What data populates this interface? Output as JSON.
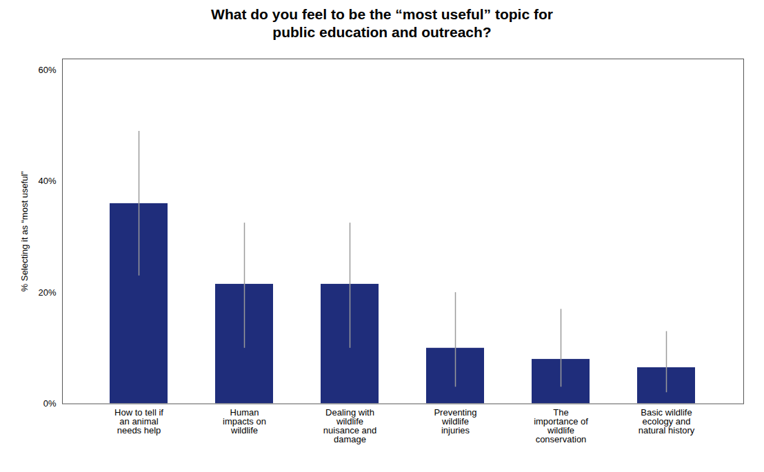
{
  "chart_data": {
    "type": "bar",
    "title": "What do you feel to be the “most useful” topic for\npublic education and outreach?",
    "ylabel": "% Selecting it as “most useful”",
    "categories": [
      "How to tell if\nan animal\nneeds help",
      "Human\nimpacts on\nwildlife",
      "Dealing with\nwildlife\nnuisance and\ndamage",
      "Preventing\nwildlife\ninjuries",
      "The\nimportance of\nwildlife\nconservation",
      "Basic wildlife\necology and\nnatural history"
    ],
    "values": [
      0.36,
      0.215,
      0.215,
      0.1,
      0.08,
      0.065
    ],
    "error_lower": [
      0.13,
      0.115,
      0.115,
      0.07,
      0.05,
      0.045
    ],
    "error_upper": [
      0.13,
      0.11,
      0.11,
      0.1,
      0.09,
      0.065
    ],
    "color": "#1F2D7B",
    "ylim": [
      0,
      0.62
    ],
    "yticks": [
      {
        "value": 0.0,
        "label": "0%"
      },
      {
        "value": 0.2,
        "label": "20%"
      },
      {
        "value": 0.4,
        "label": "40%"
      },
      {
        "value": 0.6,
        "label": "60%"
      }
    ],
    "grid": false
  }
}
